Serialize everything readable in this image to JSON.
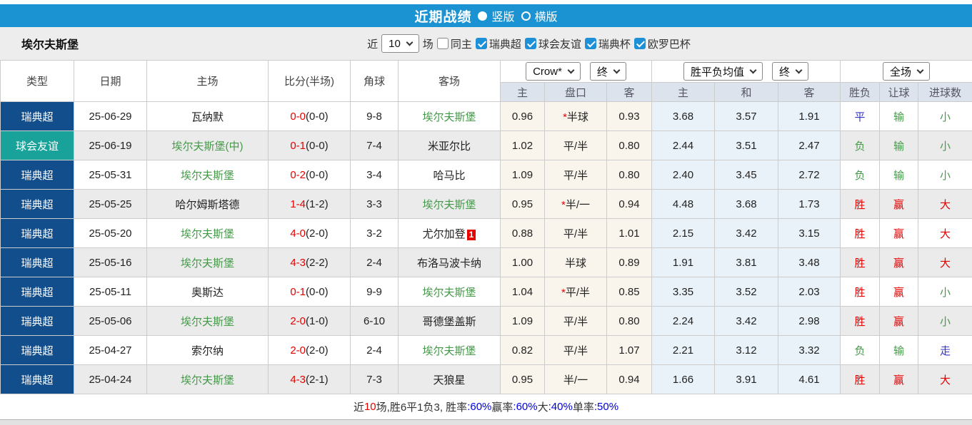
{
  "title_bar": {
    "title": "近期战绩",
    "options": [
      {
        "label": "竖版",
        "selected": true
      },
      {
        "label": "横版",
        "selected": false
      }
    ]
  },
  "filter": {
    "team": "埃尔夫斯堡",
    "near_label": "近",
    "count_value": "10",
    "games_label": "场",
    "same_home": {
      "label": "同主",
      "checked": false
    },
    "leagues": [
      {
        "label": "瑞典超",
        "checked": true
      },
      {
        "label": "球会友谊",
        "checked": true
      },
      {
        "label": "瑞典杯",
        "checked": true
      },
      {
        "label": "欧罗巴杯",
        "checked": true
      }
    ]
  },
  "table": {
    "columns": [
      "类型",
      "日期",
      "主场",
      "比分(半场)",
      "角球",
      "客场"
    ],
    "selects": {
      "odds_source": "Crow*",
      "odds_time": "终",
      "europe_source": "胜平负均值",
      "europe_time": "终",
      "scope": "全场"
    },
    "sub_columns": [
      "主",
      "盘口",
      "客",
      "主",
      "和",
      "客",
      "胜负",
      "让球",
      "进球数"
    ],
    "rows": [
      {
        "type": "瑞典超",
        "type_class": "t-league",
        "date": "25-06-29",
        "home": "瓦纳默",
        "home_team": false,
        "score_ft": "0-0",
        "score_ht": "(0-0)",
        "corners": "9-8",
        "away": "埃尔夫斯堡",
        "away_team": true,
        "away_badge": "",
        "asian_home": "0.96",
        "handicap_star": "*",
        "handicap": "半球",
        "asian_away": "0.93",
        "europe_win": "3.68",
        "europe_draw": "3.57",
        "europe_lose": "1.91",
        "result": {
          "text": "平",
          "color": "blue"
        },
        "spread": {
          "text": "输",
          "color": "green"
        },
        "goals": {
          "text": "小",
          "color": "green"
        }
      },
      {
        "type": "球会友谊",
        "type_class": "t-friendly",
        "date": "25-06-19",
        "home": "埃尔夫斯堡(中)",
        "home_team": true,
        "score_ft": "0-1",
        "score_ht": "(0-0)",
        "corners": "7-4",
        "away": "米亚尔比",
        "away_team": false,
        "away_badge": "",
        "asian_home": "1.02",
        "handicap_star": "",
        "handicap": "平/半",
        "asian_away": "0.80",
        "europe_win": "2.44",
        "europe_draw": "3.51",
        "europe_lose": "2.47",
        "result": {
          "text": "负",
          "color": "green"
        },
        "spread": {
          "text": "输",
          "color": "green"
        },
        "goals": {
          "text": "小",
          "color": "green"
        }
      },
      {
        "type": "瑞典超",
        "type_class": "t-league",
        "date": "25-05-31",
        "home": "埃尔夫斯堡",
        "home_team": true,
        "score_ft": "0-2",
        "score_ht": "(0-0)",
        "corners": "3-4",
        "away": "哈马比",
        "away_team": false,
        "away_badge": "",
        "asian_home": "1.09",
        "handicap_star": "",
        "handicap": "平/半",
        "asian_away": "0.80",
        "europe_win": "2.40",
        "europe_draw": "3.45",
        "europe_lose": "2.72",
        "result": {
          "text": "负",
          "color": "green"
        },
        "spread": {
          "text": "输",
          "color": "green"
        },
        "goals": {
          "text": "小",
          "color": "green"
        }
      },
      {
        "type": "瑞典超",
        "type_class": "t-league",
        "date": "25-05-25",
        "home": "哈尔姆斯塔德",
        "home_team": false,
        "score_ft": "1-4",
        "score_ht": "(1-2)",
        "corners": "3-3",
        "away": "埃尔夫斯堡",
        "away_team": true,
        "away_badge": "",
        "asian_home": "0.95",
        "handicap_star": "*",
        "handicap": "半/一",
        "asian_away": "0.94",
        "europe_win": "4.48",
        "europe_draw": "3.68",
        "europe_lose": "1.73",
        "result": {
          "text": "胜",
          "color": "red"
        },
        "spread": {
          "text": "赢",
          "color": "red"
        },
        "goals": {
          "text": "大",
          "color": "red"
        }
      },
      {
        "type": "瑞典超",
        "type_class": "t-league",
        "date": "25-05-20",
        "home": "埃尔夫斯堡",
        "home_team": true,
        "score_ft": "4-0",
        "score_ht": "(2-0)",
        "corners": "3-2",
        "away": "尤尔加登",
        "away_team": false,
        "away_badge": "1",
        "asian_home": "0.88",
        "handicap_star": "",
        "handicap": "平/半",
        "asian_away": "1.01",
        "europe_win": "2.15",
        "europe_draw": "3.42",
        "europe_lose": "3.15",
        "result": {
          "text": "胜",
          "color": "red"
        },
        "spread": {
          "text": "赢",
          "color": "red"
        },
        "goals": {
          "text": "大",
          "color": "red"
        }
      },
      {
        "type": "瑞典超",
        "type_class": "t-league",
        "date": "25-05-16",
        "home": "埃尔夫斯堡",
        "home_team": true,
        "score_ft": "4-3",
        "score_ht": "(2-2)",
        "corners": "2-4",
        "away": "布洛马波卡纳",
        "away_team": false,
        "away_badge": "",
        "asian_home": "1.00",
        "handicap_star": "",
        "handicap": "半球",
        "asian_away": "0.89",
        "europe_win": "1.91",
        "europe_draw": "3.81",
        "europe_lose": "3.48",
        "result": {
          "text": "胜",
          "color": "red"
        },
        "spread": {
          "text": "赢",
          "color": "red"
        },
        "goals": {
          "text": "大",
          "color": "red"
        }
      },
      {
        "type": "瑞典超",
        "type_class": "t-league",
        "date": "25-05-11",
        "home": "奥斯达",
        "home_team": false,
        "score_ft": "0-1",
        "score_ht": "(0-0)",
        "corners": "9-9",
        "away": "埃尔夫斯堡",
        "away_team": true,
        "away_badge": "",
        "asian_home": "1.04",
        "handicap_star": "*",
        "handicap": "平/半",
        "asian_away": "0.85",
        "europe_win": "3.35",
        "europe_draw": "3.52",
        "europe_lose": "2.03",
        "result": {
          "text": "胜",
          "color": "red"
        },
        "spread": {
          "text": "赢",
          "color": "red"
        },
        "goals": {
          "text": "小",
          "color": "green"
        }
      },
      {
        "type": "瑞典超",
        "type_class": "t-league",
        "date": "25-05-06",
        "home": "埃尔夫斯堡",
        "home_team": true,
        "score_ft": "2-0",
        "score_ht": "(1-0)",
        "corners": "6-10",
        "away": "哥德堡盖斯",
        "away_team": false,
        "away_badge": "",
        "asian_home": "1.09",
        "handicap_star": "",
        "handicap": "平/半",
        "asian_away": "0.80",
        "europe_win": "2.24",
        "europe_draw": "3.42",
        "europe_lose": "2.98",
        "result": {
          "text": "胜",
          "color": "red"
        },
        "spread": {
          "text": "赢",
          "color": "red"
        },
        "goals": {
          "text": "小",
          "color": "green"
        }
      },
      {
        "type": "瑞典超",
        "type_class": "t-league",
        "date": "25-04-27",
        "home": "索尔纳",
        "home_team": false,
        "score_ft": "2-0",
        "score_ht": "(2-0)",
        "corners": "2-4",
        "away": "埃尔夫斯堡",
        "away_team": true,
        "away_badge": "",
        "asian_home": "0.82",
        "handicap_star": "",
        "handicap": "平/半",
        "asian_away": "1.07",
        "europe_win": "2.21",
        "europe_draw": "3.12",
        "europe_lose": "3.32",
        "result": {
          "text": "负",
          "color": "green"
        },
        "spread": {
          "text": "输",
          "color": "green"
        },
        "goals": {
          "text": "走",
          "color": "blue"
        }
      },
      {
        "type": "瑞典超",
        "type_class": "t-league",
        "date": "25-04-24",
        "home": "埃尔夫斯堡",
        "home_team": true,
        "score_ft": "4-3",
        "score_ht": "(2-1)",
        "corners": "7-3",
        "away": "天狼星",
        "away_team": false,
        "away_badge": "",
        "asian_home": "0.95",
        "handicap_star": "",
        "handicap": "半/一",
        "asian_away": "0.94",
        "europe_win": "1.66",
        "europe_draw": "3.91",
        "europe_lose": "4.61",
        "result": {
          "text": "胜",
          "color": "red"
        },
        "spread": {
          "text": "赢",
          "color": "red"
        },
        "goals": {
          "text": "大",
          "color": "red"
        }
      }
    ]
  },
  "summary": {
    "segments": [
      {
        "text": "近",
        "color": "dark"
      },
      {
        "text": "10",
        "color": "red"
      },
      {
        "text": "场,胜6平1负3, 胜率",
        "color": "dark"
      },
      {
        "text": ":60%",
        "color": "blue"
      },
      {
        "text": " 赢率",
        "color": "dark"
      },
      {
        "text": ":60%",
        "color": "blue"
      },
      {
        "text": " 大",
        "color": "dark"
      },
      {
        "text": ":40%",
        "color": "blue"
      },
      {
        "text": " 单率",
        "color": "dark"
      },
      {
        "text": ":50%",
        "color": "blue"
      }
    ]
  }
}
